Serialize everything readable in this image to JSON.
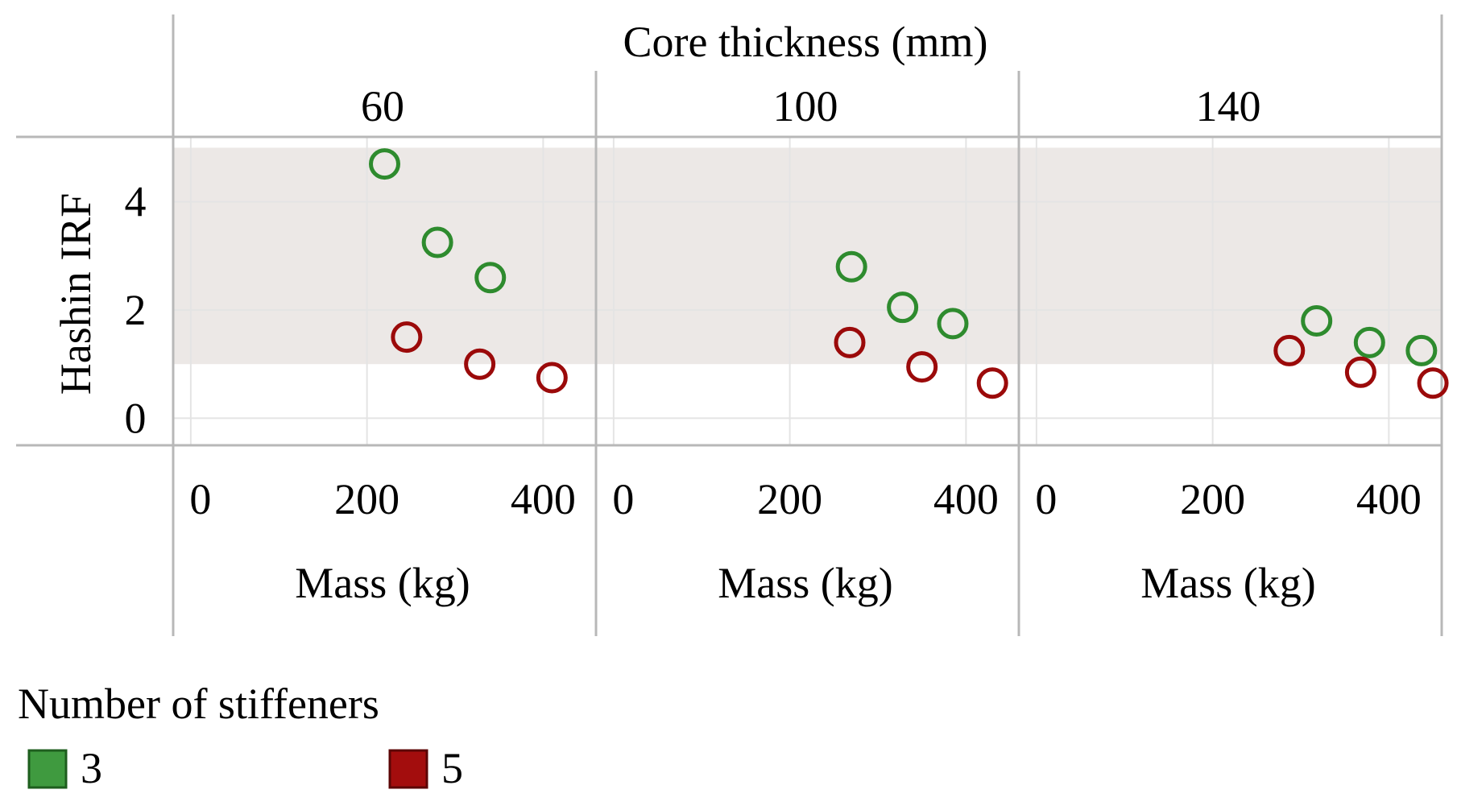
{
  "legend": {
    "title": "Number of stiffeners",
    "items": [
      {
        "label": "3",
        "color": "#2e8b2e",
        "icon": "green-square-swatch"
      },
      {
        "label": "5",
        "color": "#9b0a0a",
        "icon": "red-square-swatch"
      }
    ]
  },
  "chart_data": {
    "type": "scatter",
    "facet_title": "Core thickness (mm)",
    "ylabel": "Hashin IRF",
    "xlabel": "Mass (kg)",
    "shaded_band_y": [
      1,
      5
    ],
    "grid": true,
    "legend_placement": "bottom-left",
    "panels": [
      {
        "facet": "60",
        "xlim": [
          -20,
          460
        ],
        "ylim": [
          -0.5,
          5.2
        ],
        "xticks": [
          "0",
          "200",
          "400"
        ],
        "yticks": [
          "0",
          "2",
          "4"
        ],
        "series": [
          {
            "name": "3",
            "color": "#2e8b2e",
            "x": [
              220,
              280,
              340
            ],
            "y": [
              4.7,
              3.25,
              2.6
            ]
          },
          {
            "name": "5",
            "color": "#9b0a0a",
            "x": [
              245,
              328,
              410
            ],
            "y": [
              1.5,
              1.0,
              0.75
            ]
          }
        ]
      },
      {
        "facet": "100",
        "xlim": [
          -20,
          460
        ],
        "ylim": [
          -0.5,
          5.2
        ],
        "xticks": [
          "0",
          "200",
          "400"
        ],
        "yticks": [],
        "series": [
          {
            "name": "3",
            "color": "#2e8b2e",
            "x": [
              270,
              328,
              385
            ],
            "y": [
              2.8,
              2.05,
              1.75
            ]
          },
          {
            "name": "5",
            "color": "#9b0a0a",
            "x": [
              268,
              350,
              430
            ],
            "y": [
              1.4,
              0.95,
              0.65
            ]
          }
        ]
      },
      {
        "facet": "140",
        "xlim": [
          -20,
          460
        ],
        "ylim": [
          -0.5,
          5.2
        ],
        "xticks": [
          "0",
          "200",
          "400"
        ],
        "yticks": [],
        "series": [
          {
            "name": "3",
            "color": "#2e8b2e",
            "x": [
              318,
              378,
              437
            ],
            "y": [
              1.8,
              1.4,
              1.25
            ]
          },
          {
            "name": "5",
            "color": "#9b0a0a",
            "x": [
              287,
              368,
              450
            ],
            "y": [
              1.25,
              0.85,
              0.65
            ]
          }
        ]
      }
    ]
  }
}
